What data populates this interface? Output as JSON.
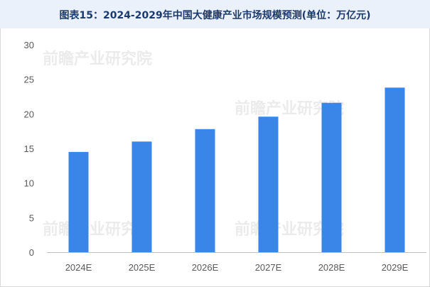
{
  "chart_data": {
    "type": "bar",
    "title": "图表15：2024-2029年中国大健康产业市场规模预测(单位：万亿元)",
    "categories": [
      "2024E",
      "2025E",
      "2026E",
      "2027E",
      "2028E",
      "2029E"
    ],
    "series": [
      {
        "values": [
          14.5,
          16.0,
          17.8,
          19.6,
          21.6,
          23.8
        ]
      }
    ],
    "ylim": [
      0,
      30
    ],
    "yticks": [
      0,
      5,
      10,
      15,
      20,
      25,
      30
    ],
    "grid": false,
    "legend": "none",
    "colors": {
      "bar": "#3a86e8",
      "axis": "#bfbfbf",
      "title_bg": "#eaf1fb",
      "title_text": "#1b3a6b"
    },
    "watermark": "前瞻产业研究院"
  }
}
